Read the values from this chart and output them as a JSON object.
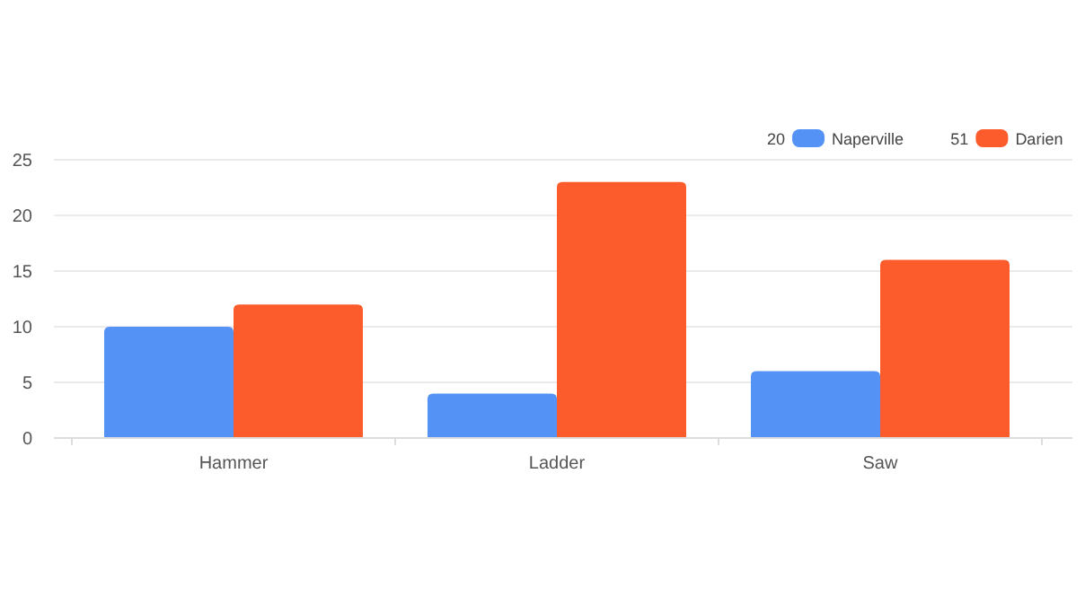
{
  "chart_data": {
    "type": "bar",
    "categories": [
      "Hammer",
      "Ladder",
      "Saw"
    ],
    "series": [
      {
        "name": "Naperville",
        "color": "#5592f5",
        "values": [
          10,
          4,
          6
        ]
      },
      {
        "name": "Darien",
        "color": "#fc5c2b",
        "values": [
          12,
          23,
          16
        ]
      }
    ],
    "annotations": [
      "20",
      "51"
    ],
    "ylim": [
      0,
      25
    ],
    "yticks": [
      0,
      5,
      10,
      15,
      20,
      25
    ],
    "grid": "y",
    "legend": "top right"
  }
}
